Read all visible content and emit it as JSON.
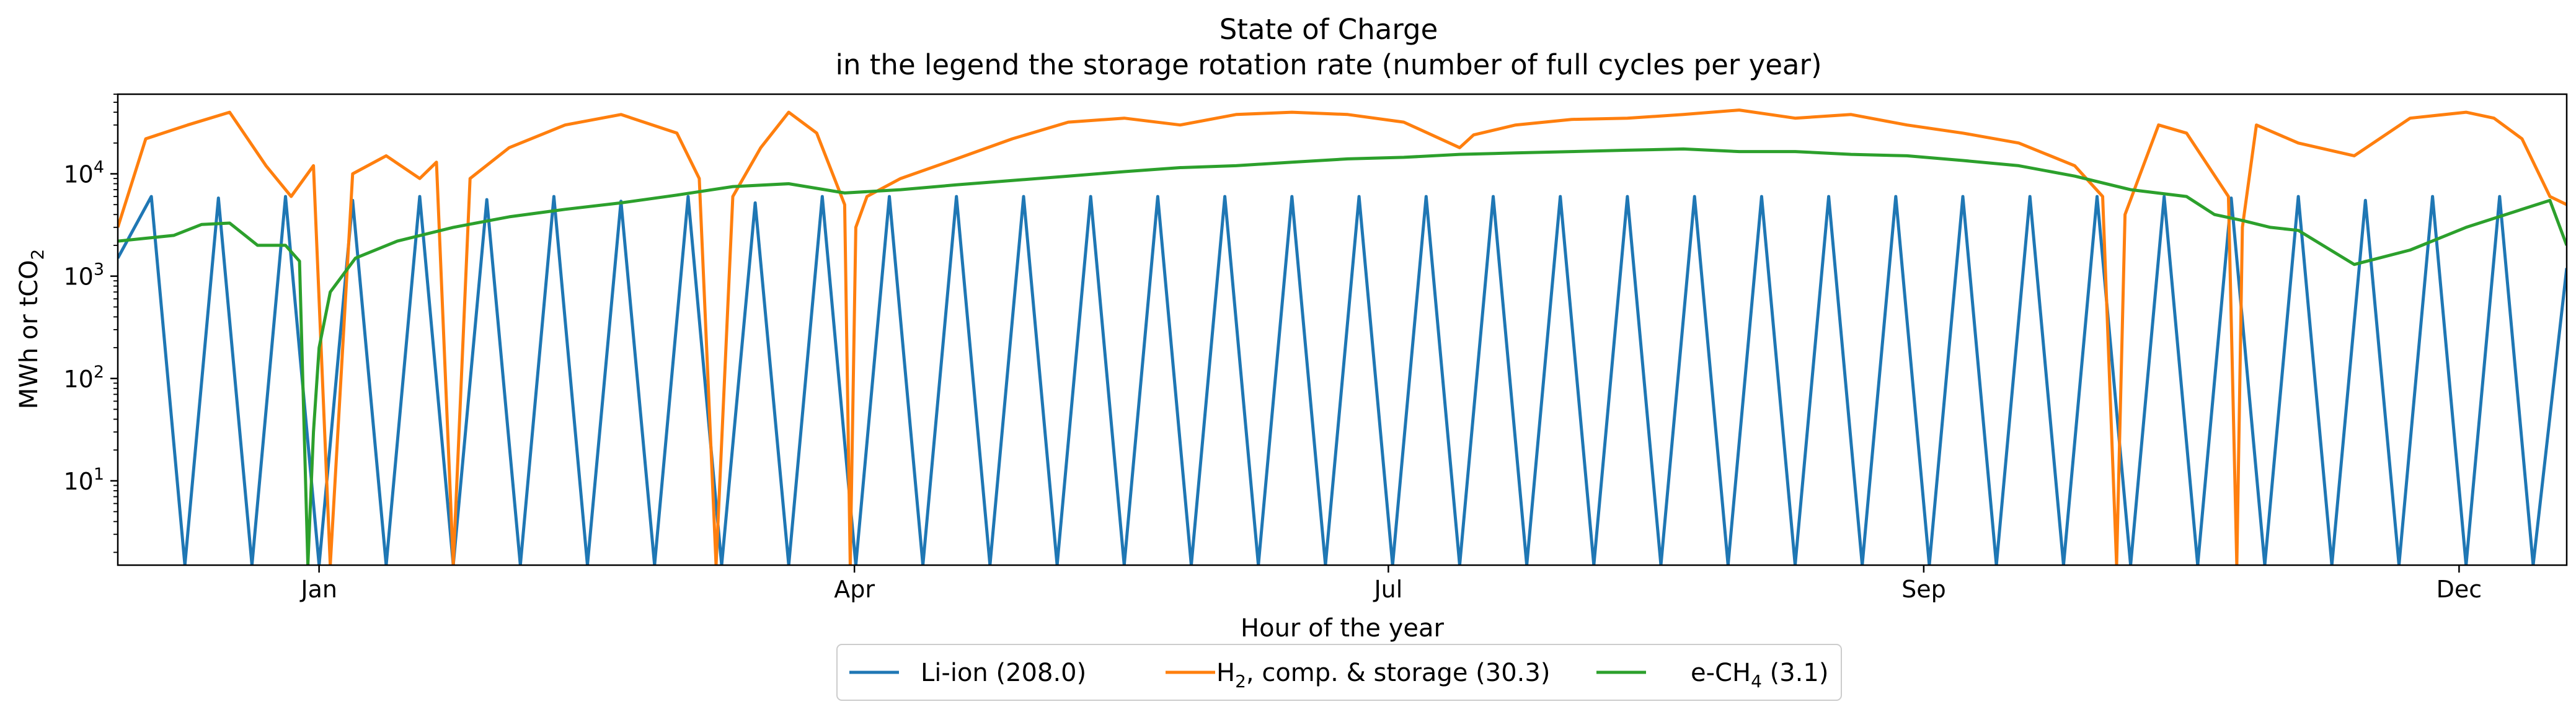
{
  "chart_data": {
    "type": "line",
    "title": "State of Charge",
    "subtitle": "in the legend the storage rotation rate (number of full cycles per year)",
    "xlabel": "Hour of the year",
    "ylabel": "MWh or tCO2",
    "ylabel_parts": {
      "main": "MWh or tCO",
      "sub": "2"
    },
    "yscale": "log",
    "xlim": [
      0,
      8760
    ],
    "ylim": [
      1.5,
      60000
    ],
    "grid": false,
    "legend_position": "bottom-center",
    "x_ticks": [
      {
        "label": "Jan",
        "value": 720
      },
      {
        "label": "Apr",
        "value": 2635
      },
      {
        "label": "Jul",
        "value": 4545
      },
      {
        "label": "Sep",
        "value": 6460
      },
      {
        "label": "Dec",
        "value": 8375
      }
    ],
    "y_ticks": [
      {
        "base": "10",
        "exp": "1",
        "value": 10
      },
      {
        "base": "10",
        "exp": "2",
        "value": 100
      },
      {
        "base": "10",
        "exp": "3",
        "value": 1000
      },
      {
        "base": "10",
        "exp": "4",
        "value": 10000
      }
    ],
    "series": [
      {
        "name": "Li-ion (208.0)",
        "legend_parts": {
          "pre": "Li-ion (208.0)",
          "sub": "",
          "post": ""
        },
        "color": "#1f77b4",
        "rotation_rate": 208.0,
        "x": [
          0,
          120,
          240,
          360,
          480,
          600,
          720,
          840,
          960,
          1080,
          1200,
          1320,
          1440,
          1560,
          1680,
          1800,
          1920,
          2040,
          2160,
          2280,
          2400,
          2520,
          2640,
          2760,
          2880,
          3000,
          3120,
          3240,
          3360,
          3480,
          3600,
          3720,
          3840,
          3960,
          4080,
          4200,
          4320,
          4440,
          4560,
          4680,
          4800,
          4920,
          5040,
          5160,
          5280,
          5400,
          5520,
          5640,
          5760,
          5880,
          6000,
          6120,
          6240,
          6360,
          6480,
          6600,
          6720,
          6840,
          6960,
          7080,
          7200,
          7320,
          7440,
          7560,
          7680,
          7800,
          7920,
          8040,
          8160,
          8280,
          8400,
          8520,
          8640,
          8760
        ],
        "values": [
          1500,
          6000,
          1.5,
          5800,
          1.5,
          6000,
          1.5,
          5500,
          1.5,
          6000,
          1.5,
          5600,
          1.5,
          6000,
          1.5,
          5400,
          1.5,
          6000,
          1.5,
          5200,
          1.5,
          6000,
          1.5,
          6000,
          1.5,
          6000,
          1.5,
          6000,
          1.5,
          6000,
          1.5,
          6000,
          1.5,
          6000,
          1.5,
          6000,
          1.5,
          6000,
          1.5,
          6000,
          1.5,
          6000,
          1.5,
          6000,
          1.5,
          6000,
          1.5,
          6000,
          1.5,
          6000,
          1.5,
          6000,
          1.5,
          6000,
          1.5,
          6000,
          1.5,
          6000,
          1.5,
          6000,
          1.5,
          6000,
          1.5,
          5800,
          1.5,
          6000,
          1.5,
          5500,
          1.5,
          6000,
          1.5,
          6000,
          1.5,
          1200
        ]
      },
      {
        "name": "H2, comp. & storage (30.3)",
        "legend_parts": {
          "pre": "H",
          "sub": "2",
          "post": ", comp. & storage (30.3)"
        },
        "color": "#ff7f0e",
        "rotation_rate": 30.3,
        "x": [
          0,
          100,
          250,
          400,
          530,
          620,
          700,
          760,
          840,
          960,
          1080,
          1140,
          1200,
          1260,
          1400,
          1600,
          1800,
          2000,
          2080,
          2140,
          2200,
          2300,
          2400,
          2500,
          2600,
          2620,
          2640,
          2680,
          2800,
          3000,
          3200,
          3400,
          3600,
          3800,
          4000,
          4200,
          4400,
          4600,
          4800,
          4850,
          5000,
          5200,
          5400,
          5600,
          5800,
          6000,
          6200,
          6400,
          6600,
          6800,
          7000,
          7100,
          7150,
          7180,
          7300,
          7400,
          7550,
          7580,
          7600,
          7650,
          7800,
          8000,
          8200,
          8400,
          8500,
          8600,
          8700,
          8760
        ],
        "values": [
          3000,
          22000,
          30000,
          40000,
          12000,
          6000,
          12000,
          1.5,
          10000,
          15000,
          9000,
          13000,
          1.5,
          9000,
          18000,
          30000,
          38000,
          25000,
          9000,
          1.5,
          6000,
          18000,
          40000,
          25000,
          5000,
          1.5,
          3000,
          6000,
          9000,
          14000,
          22000,
          32000,
          35000,
          30000,
          38000,
          40000,
          38000,
          32000,
          18000,
          24000,
          30000,
          34000,
          35000,
          38000,
          42000,
          35000,
          38000,
          30000,
          25000,
          20000,
          12000,
          6000,
          1.5,
          4000,
          30000,
          25000,
          6000,
          1.5,
          3000,
          30000,
          20000,
          15000,
          35000,
          40000,
          35000,
          22000,
          6000,
          5000
        ]
      },
      {
        "name": "e-CH4 (3.1)",
        "legend_parts": {
          "pre": "e-CH",
          "sub": "4",
          "post": " (3.1)"
        },
        "color": "#2ca02c",
        "rotation_rate": 3.1,
        "x": [
          0,
          200,
          300,
          400,
          500,
          600,
          650,
          680,
          700,
          720,
          760,
          850,
          1000,
          1200,
          1400,
          1600,
          1800,
          2000,
          2200,
          2400,
          2600,
          2800,
          3000,
          3200,
          3400,
          3600,
          3800,
          4000,
          4200,
          4400,
          4600,
          4800,
          5000,
          5200,
          5400,
          5600,
          5800,
          6000,
          6200,
          6400,
          6600,
          6800,
          7000,
          7200,
          7400,
          7500,
          7600,
          7700,
          7800,
          8000,
          8200,
          8400,
          8600,
          8700,
          8760
        ],
        "values": [
          2200,
          2500,
          3200,
          3300,
          2000,
          2000,
          1400,
          1.5,
          30,
          200,
          700,
          1500,
          2200,
          3000,
          3800,
          4500,
          5200,
          6200,
          7500,
          8000,
          6500,
          7000,
          7800,
          8600,
          9500,
          10500,
          11500,
          12000,
          13000,
          14000,
          14500,
          15500,
          16000,
          16500,
          17000,
          17500,
          16500,
          16500,
          15500,
          15000,
          13500,
          12000,
          9500,
          7000,
          6000,
          4000,
          3500,
          3000,
          2800,
          1300,
          1800,
          3000,
          4500,
          5500,
          2000
        ]
      }
    ]
  }
}
